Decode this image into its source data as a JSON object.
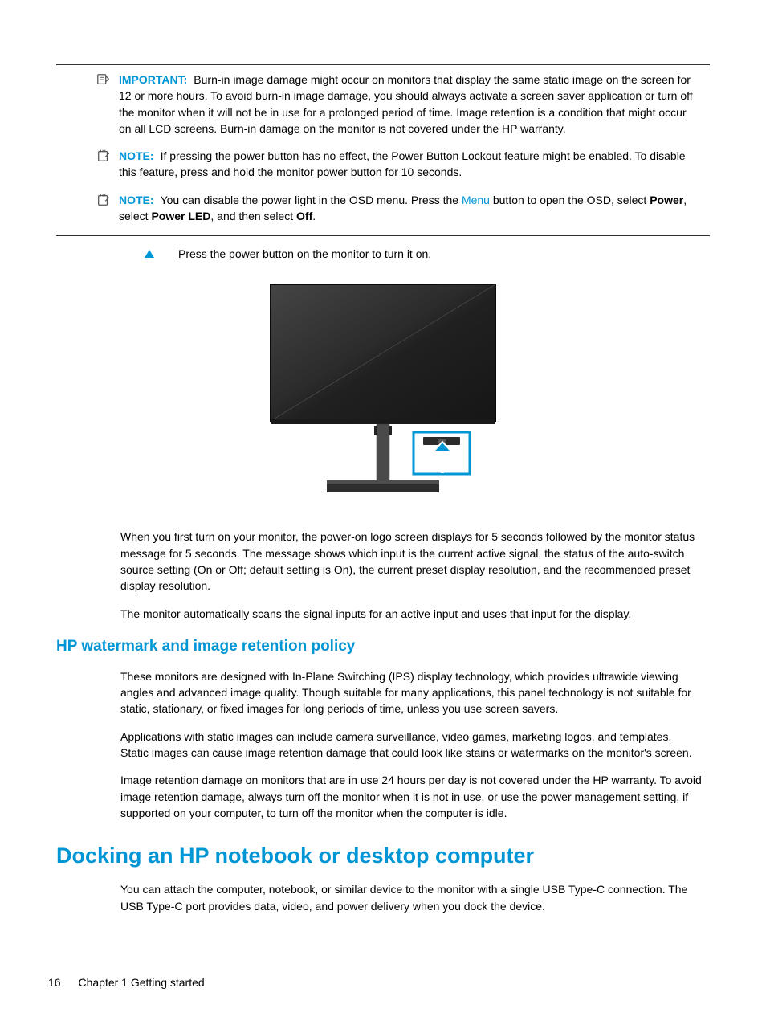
{
  "colors": {
    "accent": "#0096d6",
    "text": "#000000",
    "bg": "#ffffff",
    "border": "#333333"
  },
  "callouts": [
    {
      "icon": "important-icon",
      "label": "IMPORTANT:",
      "label_color": "#0096d6",
      "html": "Burn-in image damage might occur on monitors that display the same static image on the screen for 12 or more hours. To avoid burn-in image damage, you should always activate a screen saver application or turn off the monitor when it will not be in use for a prolonged period of time. Image retention is a condition that might occur on all LCD screens. Burn-in damage on the monitor is not covered under the HP warranty."
    },
    {
      "icon": "note-icon",
      "label": "NOTE:",
      "label_color": "#0096d6",
      "html": "If pressing the power button has no effect, the Power Button Lockout feature might be enabled. To disable this feature, press and hold the monitor power button for 10 seconds."
    },
    {
      "icon": "note-icon",
      "label": "NOTE:",
      "label_color": "#0096d6",
      "html": "You can disable the power light in the OSD menu. Press the <span class='link-blue'>Menu</span> button to open the OSD, select <b>Power</b>, select <b>Power LED</b>, and then select <b>Off</b>."
    }
  ],
  "step_text": "Press the power button on the monitor to turn it on.",
  "figure": {
    "highlight_color": "#0096d6",
    "screen_top": "#3a3a3a",
    "screen_bottom": "#1c1c1c",
    "stand_color": "#5a5a5a"
  },
  "body_paras": [
    "When you first turn on your monitor, the power-on logo screen displays for 5 seconds followed by the monitor status message for 5 seconds. The message shows which input is the current active signal, the status of the auto-switch source setting (On or Off; default setting is On), the current preset display resolution, and the recommended preset display resolution.",
    "The monitor automatically scans the signal inputs for an active input and uses that input for the display."
  ],
  "section2": {
    "heading": "HP watermark and image retention policy",
    "heading_color": "#0096d6",
    "paras": [
      "These monitors are designed with In-Plane Switching (IPS) display technology, which provides ultrawide viewing angles and advanced image quality. Though suitable for many applications, this panel technology is not suitable for static, stationary, or fixed images for long periods of time, unless you use screen savers.",
      "Applications with static images can include camera surveillance, video games, marketing logos, and templates. Static images can cause image retention damage that could look like stains or watermarks on the monitor's screen.",
      "Image retention damage on monitors that are in use 24 hours per day is not covered under the HP warranty. To avoid image retention damage, always turn off the monitor when it is not in use, or use the power management setting, if supported on your computer, to turn off the monitor when the computer is idle."
    ]
  },
  "section3": {
    "heading": "Docking an HP notebook or desktop computer",
    "heading_color": "#0096d6",
    "paras": [
      "You can attach the computer, notebook, or similar device to the monitor with a single USB Type-C connection. The USB Type-C port provides data, video, and power delivery when you dock the device."
    ]
  },
  "footer": {
    "page_number": "16",
    "chapter": "Chapter 1   Getting started"
  }
}
